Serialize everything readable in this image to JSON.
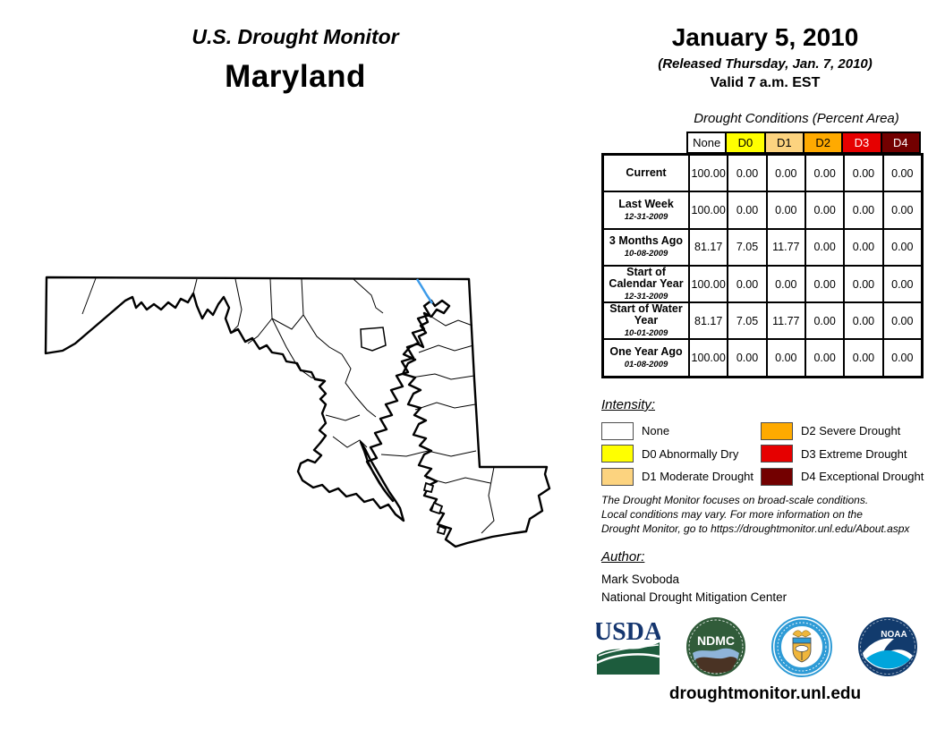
{
  "header": {
    "brand": "U.S. Drought Monitor",
    "region": "Maryland",
    "date": "January 5, 2010",
    "released": "(Released Thursday, Jan. 7, 2010)",
    "valid": "Valid 7 a.m. EST"
  },
  "table": {
    "title": "Drought Conditions (Percent Area)",
    "columns": [
      {
        "label": "None",
        "color": "#FFFFFF",
        "text_color": "#000000"
      },
      {
        "label": "D0",
        "color": "#FFFF00",
        "text_color": "#000000"
      },
      {
        "label": "D1",
        "color": "#FCD37F",
        "text_color": "#000000"
      },
      {
        "label": "D2",
        "color": "#FFAA00",
        "text_color": "#000000"
      },
      {
        "label": "D3",
        "color": "#E60000",
        "text_color": "#FFFFFF"
      },
      {
        "label": "D4",
        "color": "#730000",
        "text_color": "#FFFFFF"
      }
    ],
    "rows": [
      {
        "label": "Current",
        "date": "",
        "values": [
          "100.00",
          "0.00",
          "0.00",
          "0.00",
          "0.00",
          "0.00"
        ]
      },
      {
        "label": "Last Week",
        "date": "12-31-2009",
        "values": [
          "100.00",
          "0.00",
          "0.00",
          "0.00",
          "0.00",
          "0.00"
        ]
      },
      {
        "label": "3 Months Ago",
        "date": "10-08-2009",
        "values": [
          "81.17",
          "7.05",
          "11.77",
          "0.00",
          "0.00",
          "0.00"
        ]
      },
      {
        "label": "Start of Calendar Year",
        "date": "12-31-2009",
        "values": [
          "100.00",
          "0.00",
          "0.00",
          "0.00",
          "0.00",
          "0.00"
        ]
      },
      {
        "label": "Start of Water Year",
        "date": "10-01-2009",
        "values": [
          "81.17",
          "7.05",
          "11.77",
          "0.00",
          "0.00",
          "0.00"
        ]
      },
      {
        "label": "One Year Ago",
        "date": "01-08-2009",
        "values": [
          "100.00",
          "0.00",
          "0.00",
          "0.00",
          "0.00",
          "0.00"
        ]
      }
    ]
  },
  "legend": {
    "title": "Intensity:",
    "items": [
      {
        "code": "none",
        "label": "None",
        "color": "#FFFFFF"
      },
      {
        "code": "d0",
        "label": "D0 Abnormally Dry",
        "color": "#FFFF00"
      },
      {
        "code": "d1",
        "label": "D1 Moderate Drought",
        "color": "#FCD37F"
      },
      {
        "code": "d2",
        "label": "D2 Severe Drought",
        "color": "#FFAA00"
      },
      {
        "code": "d3",
        "label": "D3 Extreme Drought",
        "color": "#E60000"
      },
      {
        "code": "d4",
        "label": "D4 Exceptional Drought",
        "color": "#730000"
      }
    ]
  },
  "disclaimer": {
    "lines": [
      "The Drought Monitor focuses on broad-scale conditions.",
      "Local conditions may vary. For more information on the",
      "Drought Monitor, go to https://droughtmonitor.unl.edu/About.aspx"
    ]
  },
  "author": {
    "title": "Author:",
    "name": "Mark Svoboda",
    "org": "National Drought Mitigation Center"
  },
  "footer": {
    "url": "droughtmonitor.unl.edu",
    "logos": [
      "USDA",
      "National Drought Mitigation Center",
      "U.S. Department of Commerce",
      "NOAA"
    ],
    "logo_text": {
      "usda": "USDA",
      "ndmc": "NDMC",
      "noaa": "NOAA"
    }
  },
  "map": {
    "region": "Maryland",
    "land_fill": "#FFFFFF",
    "outline_color": "#000000",
    "river_color": "#3D9BE9"
  }
}
